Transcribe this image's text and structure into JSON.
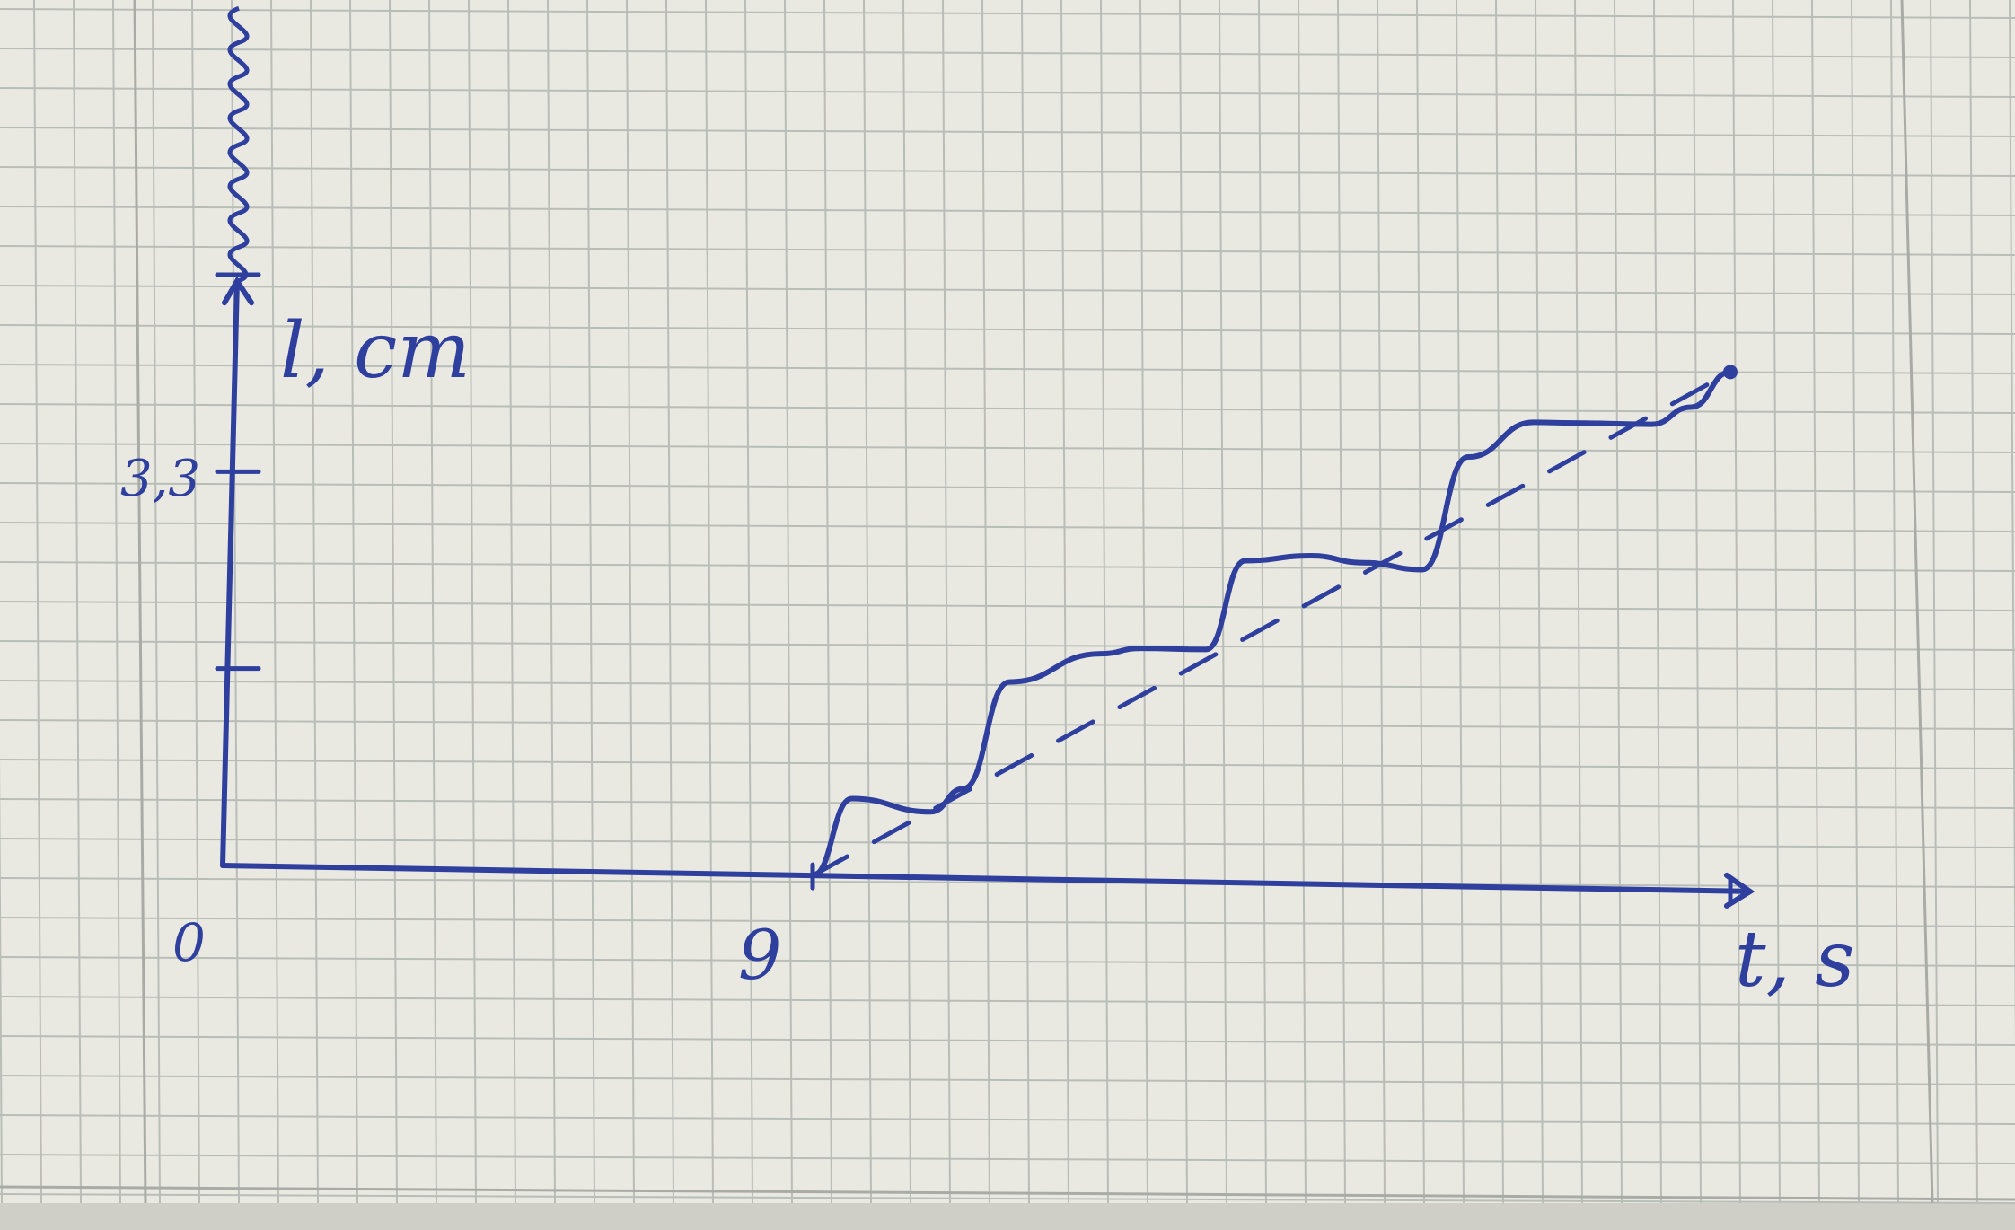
{
  "colors": {
    "paper": "#e9e9e2",
    "paper_shadow": "#cfcfc8",
    "grid": "#b9bdb8",
    "margin_line": "#a9aca6",
    "ink": "#2f3f9e"
  },
  "chart_data": {
    "type": "line",
    "title": "",
    "xlabel": "t, s",
    "ylabel": "l, cm",
    "origin_label": "0",
    "x_tick_labels": [
      "9"
    ],
    "y_tick_labels": [
      "3,3"
    ],
    "xlim": [
      0,
      24
    ],
    "ylim": [
      0,
      13
    ],
    "grid": true,
    "series": [
      {
        "style": "staircase",
        "x": [
          9.0,
          9.6,
          10.8,
          11.3,
          12.0,
          13.4,
          14.0,
          15.0,
          15.6,
          16.6,
          17.4,
          18.3,
          19.0,
          20.0,
          20.6,
          21.8,
          22.4,
          23.0
        ],
        "y": [
          0.0,
          1.3,
          1.1,
          1.5,
          3.3,
          3.8,
          3.9,
          3.9,
          5.4,
          5.5,
          5.4,
          5.3,
          7.2,
          7.8,
          7.8,
          7.8,
          8.1,
          8.7
        ]
      },
      {
        "style": "dashed-trend",
        "x": [
          9.0,
          23.0
        ],
        "y": [
          0.0,
          8.7
        ]
      }
    ],
    "y_ticks": [
      3.3,
      6.6,
      9.9
    ],
    "x_ticks": [
      9,
      23
    ]
  }
}
